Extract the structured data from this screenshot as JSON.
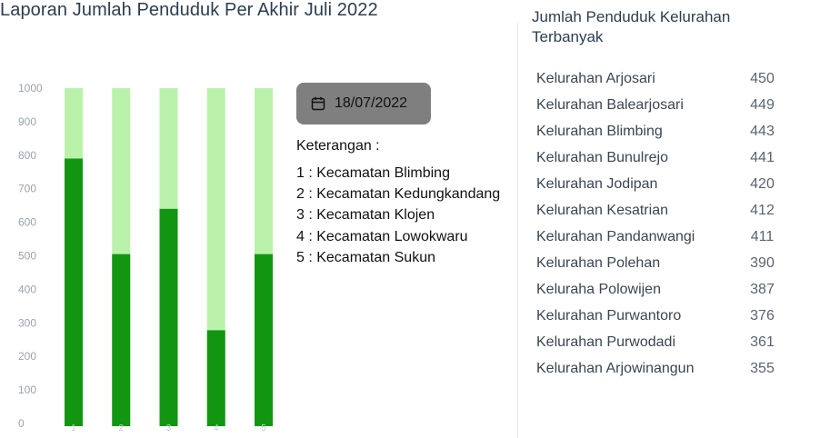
{
  "page": {
    "title": "Laporan Jumlah Penduduk Per Akhir Juli 2022"
  },
  "date_button": {
    "label": "18/07/2022",
    "icon": "calendar-icon"
  },
  "legend": {
    "title": "Keterangan :",
    "items": [
      "1 : Kecamatan Blimbing",
      "2 : Kecamatan Kedungkandang",
      "3 : Kecamatan Klojen",
      "4 : Kecamatan Lowokwaru",
      "5 : Kecamatan Sukun"
    ]
  },
  "ranking": {
    "title": "Jumlah Penduduk Kelurahan Terbanyak",
    "items": [
      {
        "name": "Kelurahan Arjosari",
        "value": "450"
      },
      {
        "name": "Kelurahan Balearjosari",
        "value": "449"
      },
      {
        "name": "Kelurahan Blimbing",
        "value": "443"
      },
      {
        "name": "Kelurahan Bunulrejo",
        "value": "441"
      },
      {
        "name": "Kelurahan Jodipan",
        "value": "420"
      },
      {
        "name": "Kelurahan Kesatrian",
        "value": "412"
      },
      {
        "name": "Kelurahan Pandanwangi",
        "value": "411"
      },
      {
        "name": "Kelurahan Polehan",
        "value": "390"
      },
      {
        "name": "Keluraha Polowijen",
        "value": "387"
      },
      {
        "name": "Kelurahan Purwantoro",
        "value": "376"
      },
      {
        "name": "Kelurahan Purwodadi",
        "value": "361"
      },
      {
        "name": "Kelurahan Arjowinangun",
        "value": "355"
      }
    ]
  },
  "chart_data": {
    "type": "bar",
    "stacked_background": true,
    "categories": [
      "1",
      "2",
      "3",
      "4",
      "5"
    ],
    "values": [
      790,
      505,
      640,
      278,
      505
    ],
    "ylim": [
      0,
      1000
    ],
    "yticks": [
      0,
      100,
      200,
      300,
      400,
      500,
      600,
      700,
      800,
      900,
      1000
    ],
    "colors": {
      "value": "#129612",
      "remainder": "#bbf2ab"
    },
    "grid": false
  }
}
